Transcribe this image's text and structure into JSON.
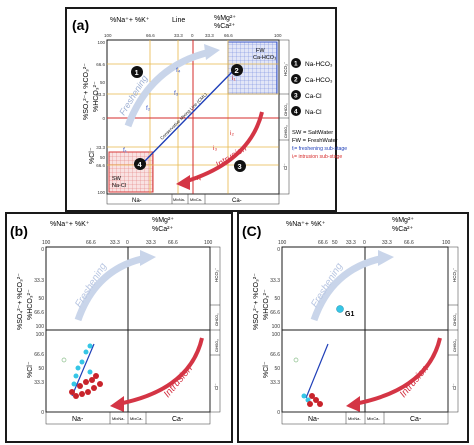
{
  "outer_frame_color": "#1a1a1a",
  "panels": {
    "a": {
      "label": "(a)",
      "top_axis": "%Na⁺+ %K⁺",
      "top_axis_right_num": "%Mg²⁺",
      "top_axis_right_den": "%Ca²⁺",
      "line_label": "Line",
      "left_axis_num": "%SO₄²⁻+ %CO₃²⁻",
      "left_axis_den": "%HCO₃²⁻",
      "left_axis_lower": "%Cl⁻",
      "top_ticks": [
        "100",
        "66.6",
        "33.3",
        "0",
        "33.3",
        "66.6",
        "100"
      ],
      "left_ticks": [
        "100",
        "66.6",
        "50",
        "33.3",
        "0",
        "33.3",
        "50",
        "66.6",
        "100"
      ],
      "bottom_labels": [
        "Na-",
        "MixNa-",
        "MixCa-",
        "Ca-"
      ],
      "right_labels": [
        "HCO₃⁻",
        "ClHCO₃",
        "CIHSO₄",
        "Cl⁻"
      ],
      "fw_box": [
        "FW",
        "Ca-HCO₃"
      ],
      "sw_box": [
        "SW",
        "Na-Cl"
      ],
      "mixing_line_label": "Conservative Mixing Line (CML)",
      "freshening_label": "Freshening",
      "intrusion_label": "Intrusion",
      "substages": [
        "f₁",
        "f₂",
        "f₃",
        "f₄",
        "i₁",
        "i₂",
        "i₃",
        "i₄"
      ],
      "circles": [
        "1",
        "2",
        "3",
        "4"
      ]
    },
    "b": {
      "label": "(b)",
      "top_ticks": [
        "100",
        "66.6",
        "33.3",
        "0",
        "33.3",
        "66.6",
        "100"
      ],
      "left_ticks": [
        "0",
        "33.3",
        "50",
        "66.6",
        "100",
        "100",
        "66.6",
        "50",
        "33.3",
        "0"
      ],
      "bottom_labels": [
        "Na-",
        "MixNa-",
        "MixCa-",
        "Ca-"
      ],
      "freshening_label": "Freshening",
      "intrusion_label": "Intrusion"
    },
    "c": {
      "label": "(C)",
      "top_ticks": [
        "100",
        "66.6",
        "50",
        "33.3",
        "0",
        "33.3",
        "66.6",
        "100"
      ],
      "left_ticks": [
        "0",
        "33.3",
        "50",
        "66.6",
        "100",
        "100",
        "66.6",
        "50",
        "33.3",
        "0"
      ],
      "bottom_labels": [
        "Na-",
        "MixNa-",
        "MixCa-",
        "Ca-"
      ],
      "freshening_label": "Freshening",
      "intrusion_label": "Intrusion",
      "g1_label": "G1"
    }
  },
  "legend": {
    "items": [
      {
        "num": "1",
        "text": "Na-HCO₃"
      },
      {
        "num": "2",
        "text": "Ca-HCO₃"
      },
      {
        "num": "3",
        "text": "Ca-Cl"
      },
      {
        "num": "4",
        "text": "Na-Cl"
      }
    ],
    "sw_def": "SW = SaltWater",
    "fw_def": "FW = FreshWater",
    "fi_def": "fᵢ= freshening sub-stage",
    "ii_def": "iᵢ= intrusion sub-stage"
  },
  "colors": {
    "freshening_arrow": "#c9d5ea",
    "intrusion_arrow": "#d43545",
    "fw_box": "#3b58c8",
    "sw_box": "#d83a3a",
    "mixing_line": "#1f3fb8",
    "stage_line": "#e8b84a",
    "red_line": "#d62b2b",
    "cyan_points": "#35c6e6",
    "red_points": "#c8232b"
  }
}
